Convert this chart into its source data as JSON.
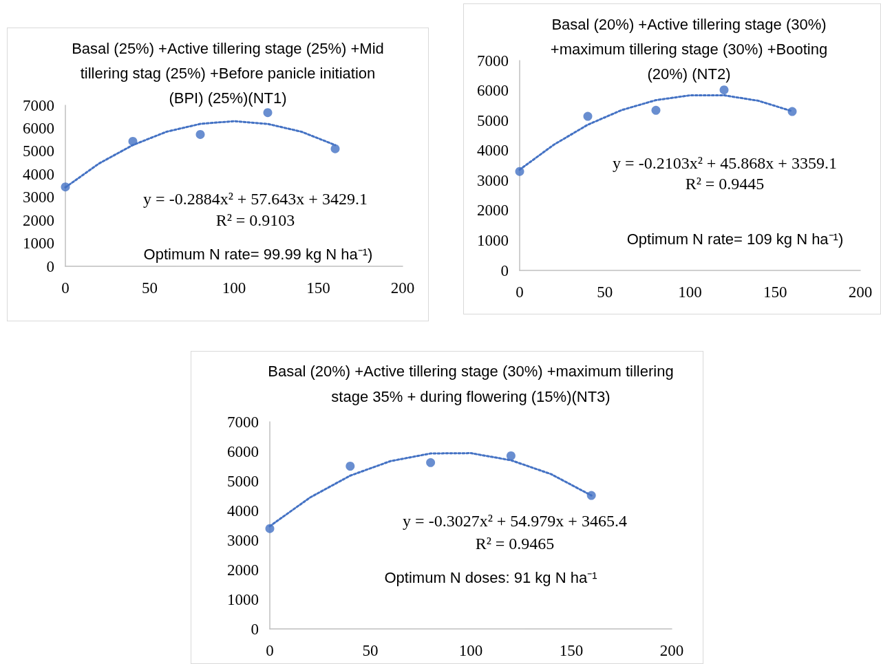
{
  "chart_data": [
    {
      "type": "scatter",
      "title": "Basal (25%) +Active tillering stage (25%) +Mid tillering stag (25%) +Before panicle initiation (BPI) (25%)(NT1)",
      "x": [
        0,
        40,
        80,
        120,
        160
      ],
      "xlim": [
        0,
        200
      ],
      "xticks": [
        0,
        50,
        100,
        150,
        200
      ],
      "ylim": [
        0,
        7000
      ],
      "yticks": [
        0,
        1000,
        2000,
        3000,
        4000,
        5000,
        6000,
        7000
      ],
      "series": [
        {
          "color": "#4472c4",
          "marker": "circle",
          "values": [
            3450,
            5430,
            5730,
            6680,
            5110
          ]
        },
        {
          "type": "line",
          "color": "#4472c4",
          "marker": "none",
          "line_style": "dotted",
          "x": [
            0,
            20,
            40,
            60,
            80,
            100,
            120,
            140,
            160
          ],
          "values": [
            3430,
            4470,
            5270,
            5850,
            6190,
            6310,
            6190,
            5850,
            5270
          ]
        }
      ],
      "annotations": [
        "y = -0.2884x² + 57.643x + 3429.1",
        "R² = 0.9103",
        "Optimum N rate= 99.99 kg N ha⁻¹)"
      ]
    },
    {
      "type": "scatter",
      "title": "Basal (20%) +Active tillering stage (30%) +maximum tillering stage (30%) +Booting (20%) (NT2)",
      "x": [
        0,
        40,
        80,
        120,
        160
      ],
      "xlim": [
        0,
        200
      ],
      "xticks": [
        0,
        50,
        100,
        150,
        200
      ],
      "ylim": [
        0,
        7000
      ],
      "yticks": [
        0,
        1000,
        2000,
        3000,
        4000,
        5000,
        6000,
        7000
      ],
      "series": [
        {
          "color": "#4472c4",
          "marker": "circle",
          "values": [
            3300,
            5140,
            5340,
            6020,
            5300
          ]
        },
        {
          "type": "line",
          "color": "#4472c4",
          "marker": "none",
          "line_style": "dotted",
          "x": [
            0,
            20,
            40,
            60,
            80,
            100,
            120,
            140,
            160
          ],
          "values": [
            3360,
            4190,
            4860,
            5350,
            5680,
            5840,
            5840,
            5660,
            5310
          ]
        }
      ],
      "annotations": [
        "y = -0.2103x² + 45.868x + 3359.1",
        "R² = 0.9445",
        "Optimum N rate= 109 kg N ha⁻¹)"
      ]
    },
    {
      "type": "scatter",
      "title": "Basal (20%) +Active tillering stage (30%) +maximum tillering stage 35% + during flowering (15%)(NT3)",
      "x": [
        0,
        40,
        80,
        120,
        160
      ],
      "xlim": [
        0,
        200
      ],
      "xticks": [
        0,
        50,
        100,
        150,
        200
      ],
      "ylim": [
        0,
        7000
      ],
      "yticks": [
        0,
        1000,
        2000,
        3000,
        4000,
        5000,
        6000,
        7000
      ],
      "series": [
        {
          "color": "#4472c4",
          "marker": "circle",
          "values": [
            3390,
            5500,
            5620,
            5850,
            4510
          ]
        },
        {
          "type": "line",
          "color": "#4472c4",
          "marker": "none",
          "line_style": "dotted",
          "x": [
            0,
            20,
            40,
            60,
            80,
            100,
            120,
            140,
            160
          ],
          "values": [
            3470,
            4440,
            5180,
            5670,
            5930,
            5940,
            5700,
            5230,
            4510
          ]
        }
      ],
      "annotations": [
        "y = -0.3027x² + 54.979x + 3465.4",
        "R² = 0.9465",
        "Optimum N doses: 91 kg N ha⁻¹"
      ]
    }
  ]
}
